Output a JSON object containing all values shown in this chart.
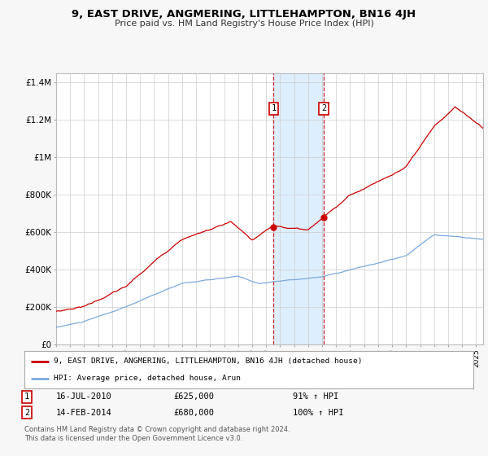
{
  "title": "9, EAST DRIVE, ANGMERING, LITTLEHAMPTON, BN16 4JH",
  "subtitle": "Price paid vs. HM Land Registry's House Price Index (HPI)",
  "legend_label_red": "9, EAST DRIVE, ANGMERING, LITTLEHAMPTON, BN16 4JH (detached house)",
  "legend_label_blue": "HPI: Average price, detached house, Arun",
  "footnote1": "Contains HM Land Registry data © Crown copyright and database right 2024.",
  "footnote2": "This data is licensed under the Open Government Licence v3.0.",
  "marker1_date": "16-JUL-2010",
  "marker1_price": "£625,000",
  "marker1_hpi": "91% ↑ HPI",
  "marker2_date": "14-FEB-2014",
  "marker2_price": "£680,000",
  "marker2_hpi": "100% ↑ HPI",
  "marker1_x": 2010.54,
  "marker2_x": 2014.12,
  "marker1_y_red": 625000,
  "marker2_y_red": 680000,
  "shade_x1": 2010.54,
  "shade_x2": 2014.12,
  "xlim": [
    1995,
    2025.5
  ],
  "ylim": [
    0,
    1450000
  ],
  "background_color": "#f7f7f7",
  "plot_bg_color": "#ffffff",
  "red_color": "#cc0000",
  "blue_color": "#7aaadd",
  "shade_color": "#ddeeff",
  "grid_color": "#cccccc",
  "yticks": [
    0,
    200000,
    400000,
    600000,
    800000,
    1000000,
    1200000,
    1400000
  ],
  "ytick_labels": [
    "£0",
    "£200K",
    "£400K",
    "£600K",
    "£800K",
    "£1M",
    "£1.2M",
    "£1.4M"
  ],
  "xticks": [
    1995,
    1996,
    1997,
    1998,
    1999,
    2000,
    2001,
    2002,
    2003,
    2004,
    2005,
    2006,
    2007,
    2008,
    2009,
    2010,
    2011,
    2012,
    2013,
    2014,
    2015,
    2016,
    2017,
    2018,
    2019,
    2020,
    2021,
    2022,
    2023,
    2024,
    2025
  ]
}
